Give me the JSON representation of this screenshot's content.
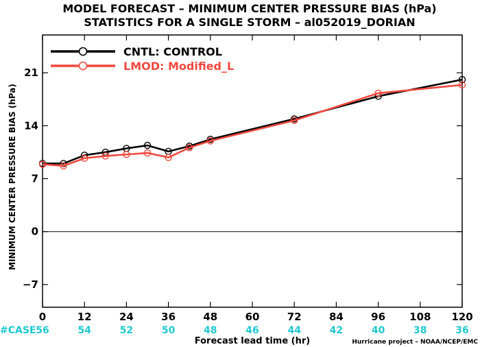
{
  "title_line1": "MODEL FORECAST – MINIMUM CENTER PRESSURE BIAS (hPa)",
  "title_line2": "STATISTICS FOR A SINGLE STORM – al052019_DORIAN",
  "credit": "Hurricane project – NOAA/NCEP/EMC",
  "case_label": "#CASE",
  "case_counts": [
    "56",
    "54",
    "52",
    "50",
    "48",
    "46",
    "44",
    "42",
    "40",
    "38",
    "36"
  ],
  "colors": {
    "case": "#1ec8d2",
    "cntl": "#000000",
    "lmod": "#f0483e"
  },
  "chart_data": {
    "type": "line",
    "title": "MODEL FORECAST – MINIMUM CENTER PRESSURE BIAS (hPa)",
    "subtitle": "STATISTICS FOR A SINGLE STORM – al052019_DORIAN",
    "xlabel": "Forecast lead time (hr)",
    "ylabel": "MINIMUM CENTER PRESSURE BIAS (hPa)",
    "xlim": [
      0,
      120
    ],
    "ylim": [
      -10,
      26
    ],
    "xticks": [
      0,
      12,
      24,
      36,
      48,
      60,
      72,
      84,
      96,
      108,
      120
    ],
    "yticks": [
      -7,
      0,
      7,
      14,
      21
    ],
    "legend": "top-left",
    "series": [
      {
        "name": "CNTL: CONTROL",
        "color": "#000000",
        "x": [
          0,
          6,
          12,
          18,
          24,
          30,
          36,
          42,
          48,
          72,
          96,
          120
        ],
        "y": [
          9.0,
          9.0,
          10.1,
          10.5,
          11.0,
          11.4,
          10.6,
          11.3,
          12.2,
          14.9,
          17.9,
          20.1
        ]
      },
      {
        "name": "LMOD: Modified_L",
        "color": "#f0483e",
        "x": [
          0,
          6,
          12,
          18,
          24,
          30,
          36,
          42,
          48,
          72,
          96,
          120
        ],
        "y": [
          8.9,
          8.7,
          9.7,
          10.0,
          10.2,
          10.4,
          9.8,
          11.1,
          12.0,
          14.7,
          18.3,
          19.4
        ]
      }
    ]
  }
}
